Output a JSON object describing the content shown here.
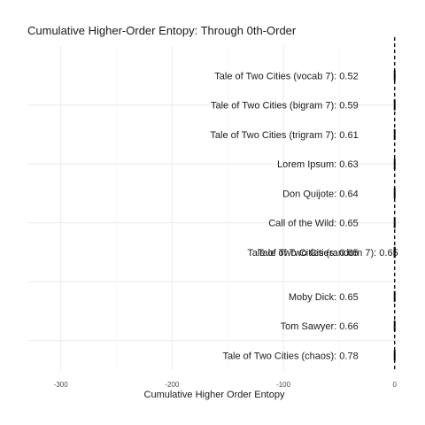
{
  "chart_data": {
    "type": "bar",
    "orientation": "horizontal",
    "title": "Cumulative Higher-Order Entopy: Through 0th-Order",
    "xlabel": "Cumulative Higher Order Entopy",
    "ylabel": "",
    "xlim": [
      -330,
      5
    ],
    "x_ticks": [
      -300,
      -200,
      -100,
      0
    ],
    "reference_line": {
      "x": 0,
      "style": "dashed"
    },
    "grid": true,
    "rows": [
      {
        "y": 10,
        "value": 0.52
      },
      {
        "y": 9,
        "value": 0.59
      },
      {
        "y": 8,
        "value": 0.61
      },
      {
        "y": 7,
        "value": 0.63
      },
      {
        "y": 6,
        "value": 0.64
      },
      {
        "y": 5,
        "value": 0.65
      },
      {
        "y": 4,
        "value": 0.65
      },
      {
        "y": 4,
        "value": 0.65
      },
      {
        "y": 2.5,
        "value": 0.65
      },
      {
        "y": 1.5,
        "value": 0.66
      },
      {
        "y": 0.5,
        "value": 0.78
      }
    ],
    "labels": [
      {
        "text": "Tale of Two Cities (vocab 7): 0.52",
        "row": 0
      },
      {
        "text": "Tale of Two Cities (bigram 7): 0.59",
        "row": 1
      },
      {
        "text": "Tale of Two Cities (trigram 7): 0.61",
        "row": 2
      },
      {
        "text": "Lorem Ipsum: 0.63",
        "row": 3
      },
      {
        "text": "Don Quijote: 0.64",
        "row": 4
      },
      {
        "text": "Call of the Wild: 0.65",
        "row": 5
      },
      {
        "text": "Tale of Two Cities (random 7): 0.65",
        "row": 6,
        "right_offset": 45
      },
      {
        "text": "Tale of Two Cities: 0.65",
        "row": 7
      },
      {
        "text": "Moby Dick: 0.65",
        "row": 8
      },
      {
        "text": "Tom Sawyer: 0.66",
        "row": 9
      },
      {
        "text": "Tale of Two Cities (chaos): 0.78",
        "row": 10
      }
    ]
  }
}
